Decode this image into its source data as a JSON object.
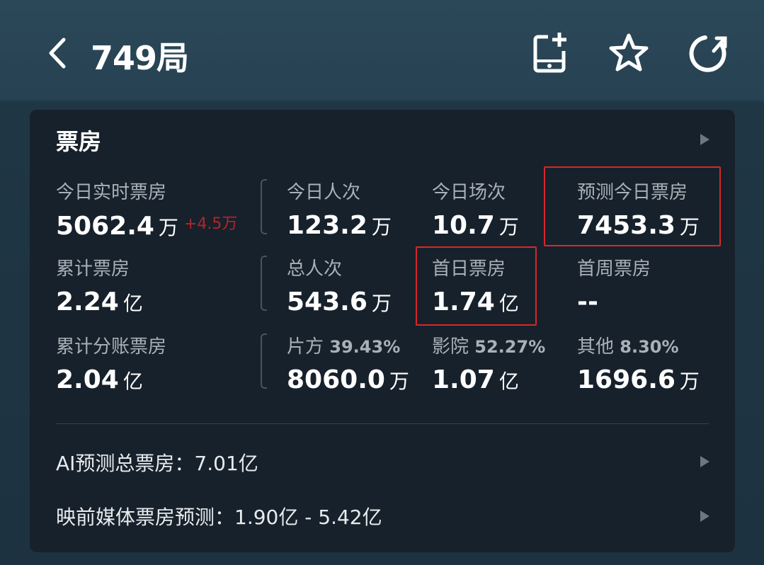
{
  "header": {
    "title": "749局",
    "icons": [
      "back-chevron-icon",
      "add-to-phone-icon",
      "star-icon",
      "refresh-icon"
    ]
  },
  "card": {
    "title": "票房",
    "stats": [
      {
        "label": "今日实时票房",
        "value": "5062.4",
        "unit": "万",
        "delta": "+4.5万"
      },
      {
        "label": "今日人次",
        "value": "123.2",
        "unit": "万"
      },
      {
        "label": "今日场次",
        "value": "10.7",
        "unit": "万"
      },
      {
        "label": "预测今日票房",
        "value": "7453.3",
        "unit": "万"
      },
      {
        "label": "累计票房",
        "value": "2.24",
        "unit": "亿"
      },
      {
        "label": "总人次",
        "value": "543.6",
        "unit": "万"
      },
      {
        "label": "首日票房",
        "value": "1.74",
        "unit": "亿"
      },
      {
        "label": "首周票房",
        "value": "--",
        "unit": ""
      },
      {
        "label": "累计分账票房",
        "value": "2.04",
        "unit": "亿"
      },
      {
        "label": "片方",
        "pct": "39.43%",
        "value": "8060.0",
        "unit": "万"
      },
      {
        "label": "影院",
        "pct": "52.27%",
        "value": "1.07",
        "unit": "亿"
      },
      {
        "label": "其他",
        "pct": "8.30%",
        "value": "1696.6",
        "unit": "万"
      }
    ],
    "ai_forecast": "AI预测总票房：7.01亿",
    "media_forecast": "映前媒体票房预测：1.90亿 - 5.42亿"
  },
  "colors": {
    "highlight_box": "#d6282a",
    "delta": "#b8222a",
    "card_bg": "#17212b"
  }
}
